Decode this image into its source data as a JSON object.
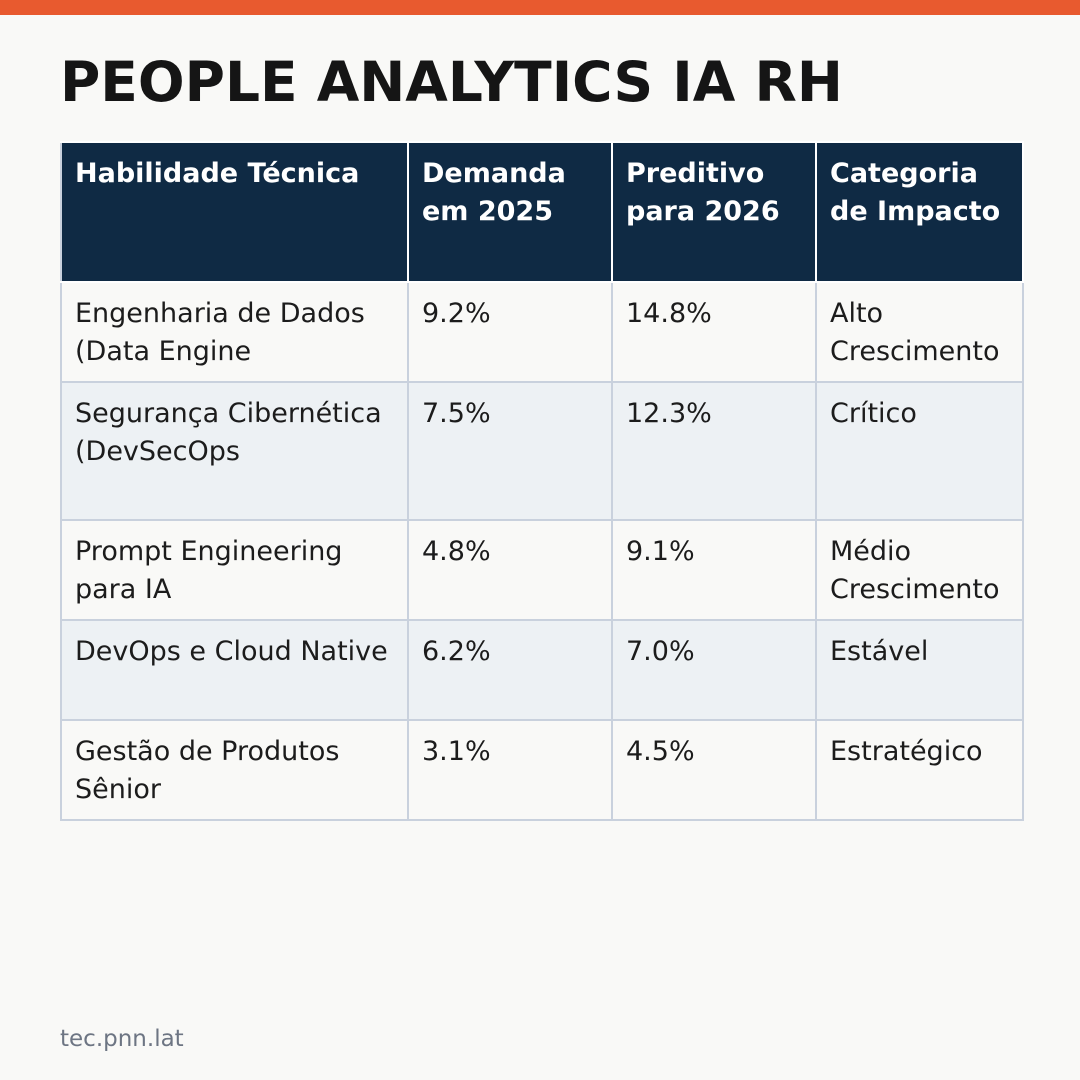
{
  "colors": {
    "accent_bar": "#e85a2f",
    "header_bg": "#0f2a44",
    "row_odd": "#f9f9f7",
    "row_even": "#edf1f4"
  },
  "page": {
    "title": "PEOPLE ANALYTICS IA RH",
    "footer": "tec.pnn.lat"
  },
  "table": {
    "headers": [
      "Habilidade Técnica",
      "Demanda em 2025",
      "Preditivo para 2026",
      "Categoria de Impacto"
    ],
    "rows": [
      {
        "skill": "Engenharia de Dados (Data Engine",
        "demand_2025": "9.2%",
        "forecast_2026": "14.8%",
        "impact": "Alto Crescimento"
      },
      {
        "skill": "Segurança Cibernética (DevSecOps",
        "demand_2025": "7.5%",
        "forecast_2026": "12.3%",
        "impact": "Crítico"
      },
      {
        "skill": "Prompt Engineering para IA",
        "demand_2025": "4.8%",
        "forecast_2026": "9.1%",
        "impact": "Médio Crescimento"
      },
      {
        "skill": "DevOps e Cloud Native",
        "demand_2025": "6.2%",
        "forecast_2026": "7.0%",
        "impact": "Estável"
      },
      {
        "skill": "Gestão de Produtos Sênior",
        "demand_2025": "3.1%",
        "forecast_2026": "4.5%",
        "impact": "Estratégico"
      }
    ]
  }
}
